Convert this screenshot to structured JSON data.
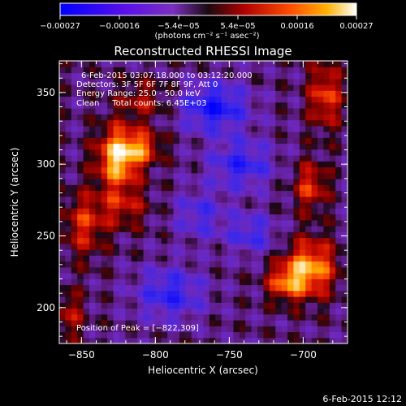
{
  "chart_data": {
    "type": "heatmap",
    "title": "Reconstructed RHESSI Image",
    "xlabel": "Heliocentric X (arcsec)",
    "ylabel": "Heliocentric Y (arcsec)",
    "xlim": [
      -865,
      -670
    ],
    "ylim": [
      175,
      372
    ],
    "x_ticks": [
      -850,
      -800,
      -750,
      -700
    ],
    "y_ticks": [
      200,
      250,
      300,
      350
    ],
    "x_tick_labels": [
      "−850",
      "−800",
      "−750",
      "−700"
    ],
    "y_tick_labels": [
      "200",
      "250",
      "300",
      "350"
    ],
    "colorbar": {
      "range": [
        -0.00027,
        0.00027
      ],
      "tick_labels": [
        "−0.00027",
        "−0.00016",
        "−5.4e−05",
        "5.4e−05",
        "0.00016",
        "0.00027"
      ],
      "unit_label": "(photons cm⁻² s⁻¹ asec⁻²)",
      "colors": [
        "#0000ff",
        "#6a00ff",
        "#6c2bb8",
        "#2a0a20",
        "#9a0000",
        "#ff3000",
        "#ffa000",
        "#ffffff"
      ]
    },
    "annotations": [
      "6-Feb-2015 03:07:18.000 to 03:12:20.000",
      "Detectors: 3F 5F 6F 7F 8F 9F, Att 0",
      "Energy Range: 25.0 - 50.0 keV",
      "Clean     Total counts: 6.45E+03"
    ],
    "peak_label": "Position of Peak = [−822,309]",
    "peak": [
      -822,
      309
    ],
    "blobs": [
      {
        "x": -825,
        "y": 305,
        "sx": 10,
        "sy": 15,
        "a": 1.0
      },
      {
        "x": -808,
        "y": 312,
        "sx": 9,
        "sy": 8,
        "a": 0.55
      },
      {
        "x": -695,
        "y": 228,
        "sx": 12,
        "sy": 14,
        "a": 0.85
      },
      {
        "x": -712,
        "y": 218,
        "sx": 9,
        "sy": 9,
        "a": 0.6
      },
      {
        "x": -685,
        "y": 348,
        "sx": 8,
        "sy": 16,
        "a": 0.6
      },
      {
        "x": -695,
        "y": 285,
        "sx": 8,
        "sy": 12,
        "a": 0.55
      },
      {
        "x": -848,
        "y": 258,
        "sx": 10,
        "sy": 16,
        "a": 0.5
      },
      {
        "x": -858,
        "y": 195,
        "sx": 7,
        "sy": 12,
        "a": 0.4
      },
      {
        "x": -808,
        "y": 345,
        "sx": 12,
        "sy": 10,
        "a": 0.35
      },
      {
        "x": -822,
        "y": 270,
        "sx": 12,
        "sy": 10,
        "a": 0.4
      },
      {
        "x": -760,
        "y": 340,
        "sx": 16,
        "sy": 12,
        "a": -0.7
      },
      {
        "x": -742,
        "y": 300,
        "sx": 15,
        "sy": 12,
        "a": -0.55
      },
      {
        "x": -790,
        "y": 210,
        "sx": 16,
        "sy": 13,
        "a": -0.55
      },
      {
        "x": -735,
        "y": 252,
        "sx": 12,
        "sy": 10,
        "a": -0.45
      },
      {
        "x": -770,
        "y": 265,
        "sx": 12,
        "sy": 12,
        "a": -0.4
      }
    ]
  },
  "footer": {
    "date": "6-Feb-2015 12:12"
  }
}
